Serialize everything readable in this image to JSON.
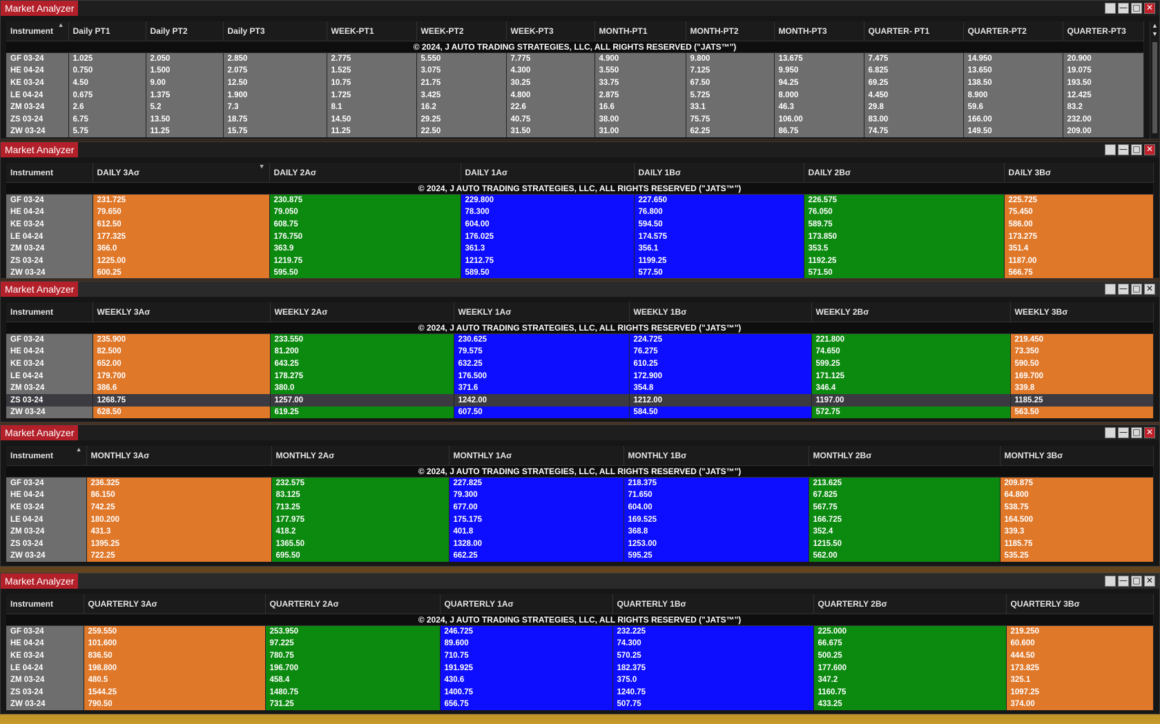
{
  "copyright": "© 2024, J AUTO TRADING STRATEGIES, LLC, ALL RIGHTS RESERVED (\"JATS™\")",
  "instruments": [
    "GF 03-24",
    "HE 04-24",
    "KE 03-24",
    "LE 04-24",
    "ZM 03-24",
    "ZS 03-24",
    "ZW 03-24"
  ],
  "windows": [
    {
      "title": "Market Analyzer",
      "headers": [
        "Instrument",
        "Daily PT1",
        "Daily PT2",
        "Daily PT3",
        "WEEK-PT1",
        "WEEK-PT2",
        "WEEK-PT3",
        "MONTH-PT1",
        "MONTH-PT2",
        "MONTH-PT3",
        "QUARTER- PT1",
        "QUARTER-PT2",
        "QUARTER-PT3"
      ],
      "rows": [
        [
          "1.025",
          "2.050",
          "2.850",
          "2.775",
          "5.550",
          "7.775",
          "4.900",
          "9.800",
          "13.675",
          "7.475",
          "14.950",
          "20.900"
        ],
        [
          "0.750",
          "1.500",
          "2.075",
          "1.525",
          "3.075",
          "4.300",
          "3.550",
          "7.125",
          "9.950",
          "6.825",
          "13.650",
          "19.075"
        ],
        [
          "4.50",
          "9.00",
          "12.50",
          "10.75",
          "21.75",
          "30.25",
          "33.75",
          "67.50",
          "94.25",
          "69.25",
          "138.50",
          "193.50"
        ],
        [
          "0.675",
          "1.375",
          "1.900",
          "1.725",
          "3.425",
          "4.800",
          "2.875",
          "5.725",
          "8.000",
          "4.450",
          "8.900",
          "12.425"
        ],
        [
          "2.6",
          "5.2",
          "7.3",
          "8.1",
          "16.2",
          "22.6",
          "16.6",
          "33.1",
          "46.3",
          "29.8",
          "59.6",
          "83.2"
        ],
        [
          "6.75",
          "13.50",
          "18.75",
          "14.50",
          "29.25",
          "40.75",
          "38.00",
          "75.75",
          "106.00",
          "83.00",
          "166.00",
          "232.00"
        ],
        [
          "5.75",
          "11.25",
          "15.75",
          "11.25",
          "22.50",
          "31.50",
          "31.00",
          "62.25",
          "86.75",
          "74.75",
          "149.50",
          "209.00"
        ]
      ]
    },
    {
      "title": "Market Analyzer",
      "headers": [
        "Instrument",
        "DAILY 3Aσ",
        "DAILY 2Aσ",
        "DAILY 1Aσ",
        "DAILY 1Bσ",
        "DAILY 2Bσ",
        "DAILY 3Bσ"
      ],
      "rows": [
        [
          "231.725",
          "230.875",
          "229.800",
          "227.650",
          "226.575",
          "225.725"
        ],
        [
          "79.650",
          "79.050",
          "78.300",
          "76.800",
          "76.050",
          "75.450"
        ],
        [
          "612.50",
          "608.75",
          "604.00",
          "594.50",
          "589.75",
          "586.00"
        ],
        [
          "177.325",
          "176.750",
          "176.025",
          "174.575",
          "173.850",
          "173.275"
        ],
        [
          "366.0",
          "363.9",
          "361.3",
          "356.1",
          "353.5",
          "351.4"
        ],
        [
          "1225.00",
          "1219.75",
          "1212.75",
          "1199.25",
          "1192.25",
          "1187.00"
        ],
        [
          "600.25",
          "595.50",
          "589.50",
          "577.50",
          "571.50",
          "566.75"
        ]
      ]
    },
    {
      "title": "Market Analyzer",
      "headers": [
        "Instrument",
        "WEEKLY 3Aσ",
        "WEEKLY 2Aσ",
        "WEEKLY 1Aσ",
        "WEEKLY 1Bσ",
        "WEEKLY 2Bσ",
        "WEEKLY 3Bσ"
      ],
      "rows": [
        [
          "235.900",
          "233.550",
          "230.625",
          "224.725",
          "221.800",
          "219.450"
        ],
        [
          "82.500",
          "81.200",
          "79.575",
          "76.275",
          "74.650",
          "73.350"
        ],
        [
          "652.00",
          "643.25",
          "632.25",
          "610.25",
          "599.25",
          "590.50"
        ],
        [
          "179.700",
          "178.275",
          "176.500",
          "172.900",
          "171.125",
          "169.700"
        ],
        [
          "386.6",
          "380.0",
          "371.6",
          "354.8",
          "346.4",
          "339.8"
        ],
        [
          "1268.75",
          "1257.00",
          "1242.00",
          "1212.00",
          "1197.00",
          "1185.25"
        ],
        [
          "628.50",
          "619.25",
          "607.50",
          "584.50",
          "572.75",
          "563.50"
        ]
      ]
    },
    {
      "title": "Market Analyzer",
      "headers": [
        "Instrument",
        "MONTHLY 3Aσ",
        "MONTHLY 2Aσ",
        "MONTHLY 1Aσ",
        "MONTHLY 1Bσ",
        "MONTHLY 2Bσ",
        "MONTHLY 3Bσ"
      ],
      "rows": [
        [
          "236.325",
          "232.575",
          "227.825",
          "218.375",
          "213.625",
          "209.875"
        ],
        [
          "86.150",
          "83.125",
          "79.300",
          "71.650",
          "67.825",
          "64.800"
        ],
        [
          "742.25",
          "713.25",
          "677.00",
          "604.00",
          "567.75",
          "538.75"
        ],
        [
          "180.200",
          "177.975",
          "175.175",
          "169.525",
          "166.725",
          "164.500"
        ],
        [
          "431.3",
          "418.2",
          "401.8",
          "368.8",
          "352.4",
          "339.3"
        ],
        [
          "1395.25",
          "1365.50",
          "1328.00",
          "1253.00",
          "1215.50",
          "1185.75"
        ],
        [
          "722.25",
          "695.50",
          "662.25",
          "595.25",
          "562.00",
          "535.25"
        ]
      ]
    },
    {
      "title": "Market Analyzer",
      "headers": [
        "Instrument",
        "QUARTERLY 3Aσ",
        "QUARTERLY 2Aσ",
        "QUARTERLY 1Aσ",
        "QUARTERLY 1Bσ",
        "QUARTERLY 2Bσ",
        "QUARTERLY 3Bσ"
      ],
      "rows": [
        [
          "259.550",
          "253.950",
          "246.725",
          "232.225",
          "225.000",
          "219.250"
        ],
        [
          "101.600",
          "97.225",
          "89.600",
          "74.300",
          "66.675",
          "60.600"
        ],
        [
          "836.50",
          "780.75",
          "710.75",
          "570.25",
          "500.25",
          "444.50"
        ],
        [
          "198.800",
          "196.700",
          "191.925",
          "182.375",
          "177.600",
          "173.825"
        ],
        [
          "480.5",
          "458.4",
          "430.6",
          "375.0",
          "347.2",
          "325.1"
        ],
        [
          "1544.25",
          "1480.75",
          "1400.75",
          "1240.75",
          "1160.75",
          "1097.25"
        ],
        [
          "790.50",
          "731.25",
          "656.75",
          "507.75",
          "433.25",
          "374.00"
        ]
      ]
    }
  ]
}
